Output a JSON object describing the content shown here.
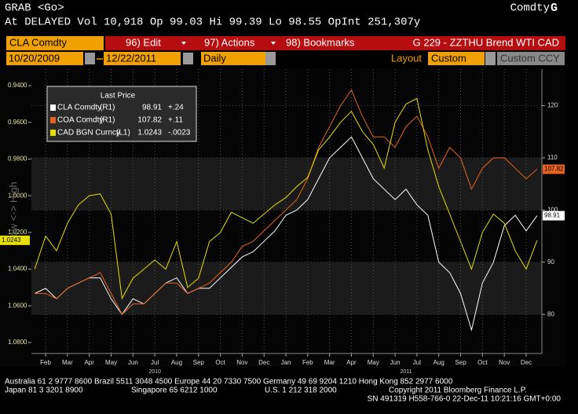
{
  "header": {
    "command": "GRAB <Go>",
    "market": "Comdty",
    "market_key": "G",
    "quote": "At DELAYED Vol 10,918 Op 99.03 Hi 99.39 Lo 98.55 OpInt 251,307y"
  },
  "toolbar": {
    "security": "CLA Comdty",
    "menu": [
      "96) Edit",
      "97) Actions",
      "98) Bookmarks"
    ],
    "page_title": "G 229 - ZZTHU Brend WTI CAD",
    "start_date": "10/20/2009",
    "end_date": "12/22/2011",
    "period": "Daily",
    "layout_label": "Layout",
    "layout": "Custom",
    "currency": "Custom CCY"
  },
  "chart_data": {
    "type": "line",
    "legend_title": "Last Price",
    "axis_title": "Low <-> High",
    "x": [
      0.5,
      1,
      1.5,
      2,
      2.5,
      3,
      3.5,
      4,
      4.5,
      5,
      5.5,
      6,
      6.5,
      7,
      7.5,
      8,
      8.5,
      9,
      9.5,
      10,
      10.5,
      11,
      11.5,
      12,
      12.5,
      13,
      13.5,
      14,
      14.5,
      15,
      15.5,
      16,
      16.5,
      17,
      17.5,
      18,
      18.5,
      19,
      19.5,
      20,
      20.5,
      21,
      21.5,
      22,
      22.5,
      23,
      23.5
    ],
    "xlim": [
      0.35,
      23.72
    ],
    "xticks": [
      {
        "value": 1,
        "label": "Feb"
      },
      {
        "value": 2,
        "label": "Mar"
      },
      {
        "value": 3,
        "label": "Apr"
      },
      {
        "value": 4,
        "label": "May"
      },
      {
        "value": 5,
        "label": "Jun"
      },
      {
        "value": 6,
        "label": "Jul"
      },
      {
        "value": 7,
        "label": "Aug"
      },
      {
        "value": 8,
        "label": "Sep"
      },
      {
        "value": 9,
        "label": "Oct"
      },
      {
        "value": 10,
        "label": "Nov"
      },
      {
        "value": 11,
        "label": "Dec"
      },
      {
        "value": 12,
        "label": "Jan"
      },
      {
        "value": 13,
        "label": "Feb"
      },
      {
        "value": 14,
        "label": "Mar"
      },
      {
        "value": 15,
        "label": "Apr"
      },
      {
        "value": 16,
        "label": "May"
      },
      {
        "value": 17,
        "label": "Jun"
      },
      {
        "value": 18,
        "label": "Jul"
      },
      {
        "value": 19,
        "label": "Aug"
      },
      {
        "value": 20,
        "label": "Sep"
      },
      {
        "value": 21,
        "label": "Oct"
      },
      {
        "value": 22,
        "label": "Nov"
      },
      {
        "value": 23,
        "label": "Dec"
      }
    ],
    "years": [
      "2010",
      "2011"
    ],
    "ylim": [
      1.086,
      0.931
    ],
    "yticks": [
      {
        "value": 0.94,
        "label": "0.9400"
      },
      {
        "value": 0.96,
        "label": "0.9600"
      },
      {
        "value": 0.98,
        "label": "0.9800"
      },
      {
        "value": 1.0,
        "label": "1.0000"
      },
      {
        "value": 1.02,
        "label": "1.0200"
      },
      {
        "value": 1.04,
        "label": "1.0400"
      },
      {
        "value": 1.06,
        "label": "1.0600"
      },
      {
        "value": 1.08,
        "label": "1.0800"
      }
    ],
    "y2lim": [
      72.5,
      127
    ],
    "y2ticks": [
      80,
      90,
      100,
      110,
      120
    ],
    "grid": true,
    "series": [
      {
        "name": "CLA Comdty",
        "axis_label": "(R1)",
        "color": "#ffffff",
        "axis": "y2",
        "change": {
          "value": 0.24,
          "label": "+.24"
        },
        "values": [
          84,
          85,
          83,
          85,
          86,
          87,
          87,
          83,
          80,
          83,
          82,
          84,
          86,
          87,
          84,
          85,
          85,
          87,
          89,
          91,
          92,
          94,
          96,
          99,
          100,
          102,
          106,
          110,
          112,
          114,
          110,
          106,
          104,
          102,
          104,
          101,
          99,
          90,
          88,
          84,
          77,
          86,
          90,
          97,
          99,
          96,
          98.91
        ]
      },
      {
        "name": "COA Comdty",
        "axis_label": "(R1)",
        "color": "#e8641e",
        "axis": "y2",
        "change": {
          "value": 0.11,
          "label": "+.11"
        },
        "values": [
          84,
          84,
          83,
          85,
          86,
          87,
          88,
          84,
          80,
          82,
          82,
          84,
          86,
          86,
          84,
          85,
          86,
          88,
          90,
          93,
          94,
          96,
          98,
          100,
          102,
          106,
          112,
          116,
          120,
          123,
          118,
          114,
          114,
          112,
          116,
          118,
          114,
          108,
          112,
          110,
          104,
          108,
          110,
          110,
          108,
          106,
          107.82
        ]
      },
      {
        "name": "CAD BGN Curncy",
        "axis_label": "(L1)",
        "color": "#e6e000",
        "axis": "y",
        "change": {
          "value": -0.0023,
          "label": "-.0023"
        },
        "values": [
          1.04,
          1.022,
          1.03,
          1.015,
          1.005,
          1.0,
          0.999,
          1.01,
          1.056,
          1.045,
          1.04,
          1.035,
          1.04,
          1.025,
          1.05,
          1.045,
          1.025,
          1.02,
          1.009,
          1.012,
          1.015,
          1.01,
          1.005,
          1.001,
          0.995,
          0.99,
          0.975,
          0.968,
          0.96,
          0.954,
          0.965,
          0.972,
          0.985,
          0.96,
          0.95,
          0.947,
          0.975,
          0.995,
          1.01,
          1.025,
          1.04,
          1.02,
          1.01,
          1.015,
          1.03,
          1.04,
          1.0243
        ]
      }
    ]
  },
  "footer": {
    "line1": "Australia 61 2 9777 8600 Brazil 5511 3048 4500 Europe 44 20 7330 7500 Germany 49 69 9204 1210 Hong Kong 852 2977 6000",
    "line2": [
      "Japan 81 3 3201 8900",
      "Singapore 65 6212 1000",
      "U.S. 1 212 318 2000",
      "Copyright 2011 Bloomberg Finance L.P."
    ],
    "line3": "SN 491319 H558-766-0 22-Dec-11 10:21:16   GMT+0:00"
  }
}
